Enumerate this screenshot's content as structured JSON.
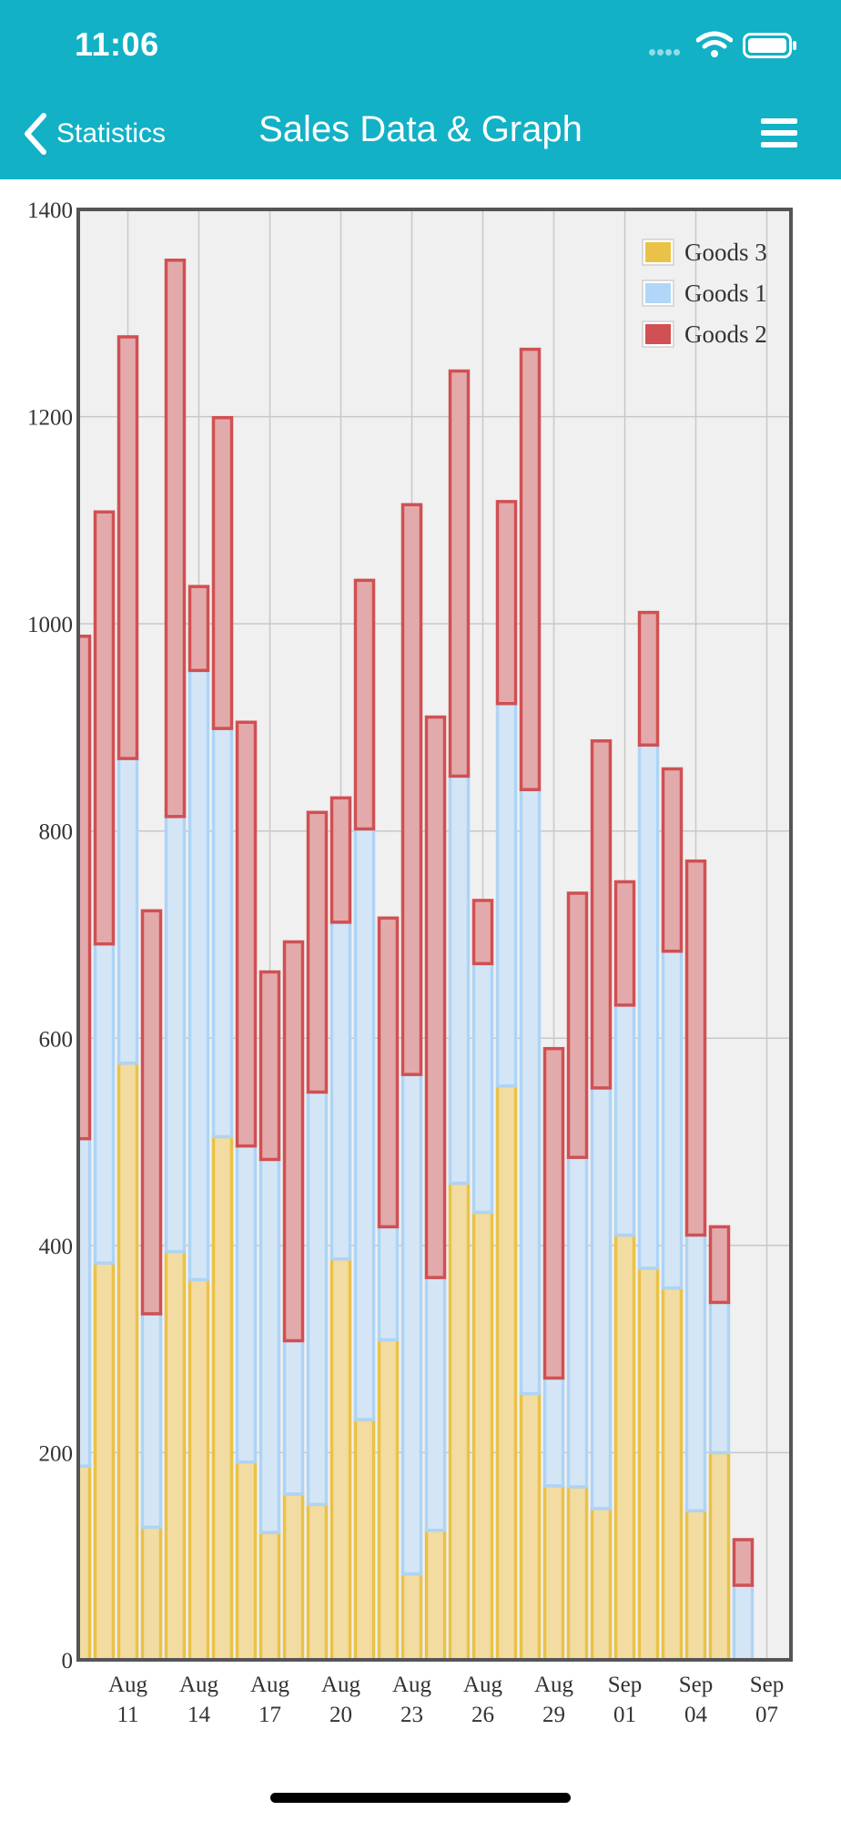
{
  "status_bar": {
    "time": "11:06"
  },
  "nav": {
    "back_label": "Statistics",
    "title": "Sales Data & Graph"
  },
  "colors": {
    "header": "#12b1c6",
    "goods1_fill": "#d4e6f6",
    "goods1_stroke": "#aed4f5",
    "goods2_fill": "#e3aaab",
    "goods2_stroke": "#d05053",
    "goods3_fill": "#f2dca2",
    "goods3_stroke": "#eac247",
    "plot_bg": "#f0f0f0",
    "grid": "#c8c8c8",
    "axis": "#555555"
  },
  "chart_data": {
    "type": "bar",
    "stacked": true,
    "y_ticks": [
      "0",
      "200",
      "400",
      "600",
      "800",
      "1000",
      "1200",
      "1400"
    ],
    "ylim": [
      0,
      1400
    ],
    "x_ticks": [
      {
        "month": "Aug",
        "day": "11"
      },
      {
        "month": "Aug",
        "day": "14"
      },
      {
        "month": "Aug",
        "day": "17"
      },
      {
        "month": "Aug",
        "day": "20"
      },
      {
        "month": "Aug",
        "day": "23"
      },
      {
        "month": "Aug",
        "day": "26"
      },
      {
        "month": "Aug",
        "day": "29"
      },
      {
        "month": "Sep",
        "day": "01"
      },
      {
        "month": "Sep",
        "day": "04"
      },
      {
        "month": "Sep",
        "day": "07"
      }
    ],
    "categories": [
      "Aug 09",
      "Aug 10",
      "Aug 11",
      "Aug 12",
      "Aug 13",
      "Aug 14",
      "Aug 15",
      "Aug 16",
      "Aug 17",
      "Aug 18",
      "Aug 19",
      "Aug 20",
      "Aug 21",
      "Aug 22",
      "Aug 23",
      "Aug 24",
      "Aug 25",
      "Aug 26",
      "Aug 27",
      "Aug 28",
      "Aug 29",
      "Aug 30",
      "Aug 31",
      "Sep 01",
      "Sep 02",
      "Sep 03",
      "Sep 04",
      "Sep 05"
    ],
    "legend_position": "top-right",
    "grid": true,
    "series": [
      {
        "name": "Goods 3",
        "values": [
          187,
          383,
          576,
          128,
          394,
          367,
          505,
          191,
          123,
          160,
          150,
          387,
          232,
          309,
          83,
          125,
          460,
          432,
          554,
          257,
          168,
          167,
          146,
          410,
          378,
          359,
          144,
          200
        ]
      },
      {
        "name": "Goods 1",
        "values": [
          316,
          308,
          294,
          206,
          420,
          588,
          394,
          305,
          360,
          148,
          398,
          325,
          570,
          109,
          482,
          244,
          393,
          240,
          369,
          583,
          104,
          318,
          406,
          222,
          505,
          325,
          266,
          145
        ]
      },
      {
        "name": "Goods 2",
        "values": [
          485,
          417,
          407,
          389,
          537,
          81,
          300,
          409,
          181,
          385,
          270,
          120,
          240,
          298,
          550,
          541,
          391,
          61,
          195,
          425,
          318,
          255,
          335,
          119,
          128,
          176,
          361,
          73
        ]
      }
    ],
    "legend_order": [
      "Goods 3",
      "Goods 1",
      "Goods 2"
    ],
    "partial_last": {
      "category": "Sep 06",
      "values": {
        "Goods 3": 0,
        "Goods 1": 72,
        "Goods 2": 44
      }
    }
  }
}
